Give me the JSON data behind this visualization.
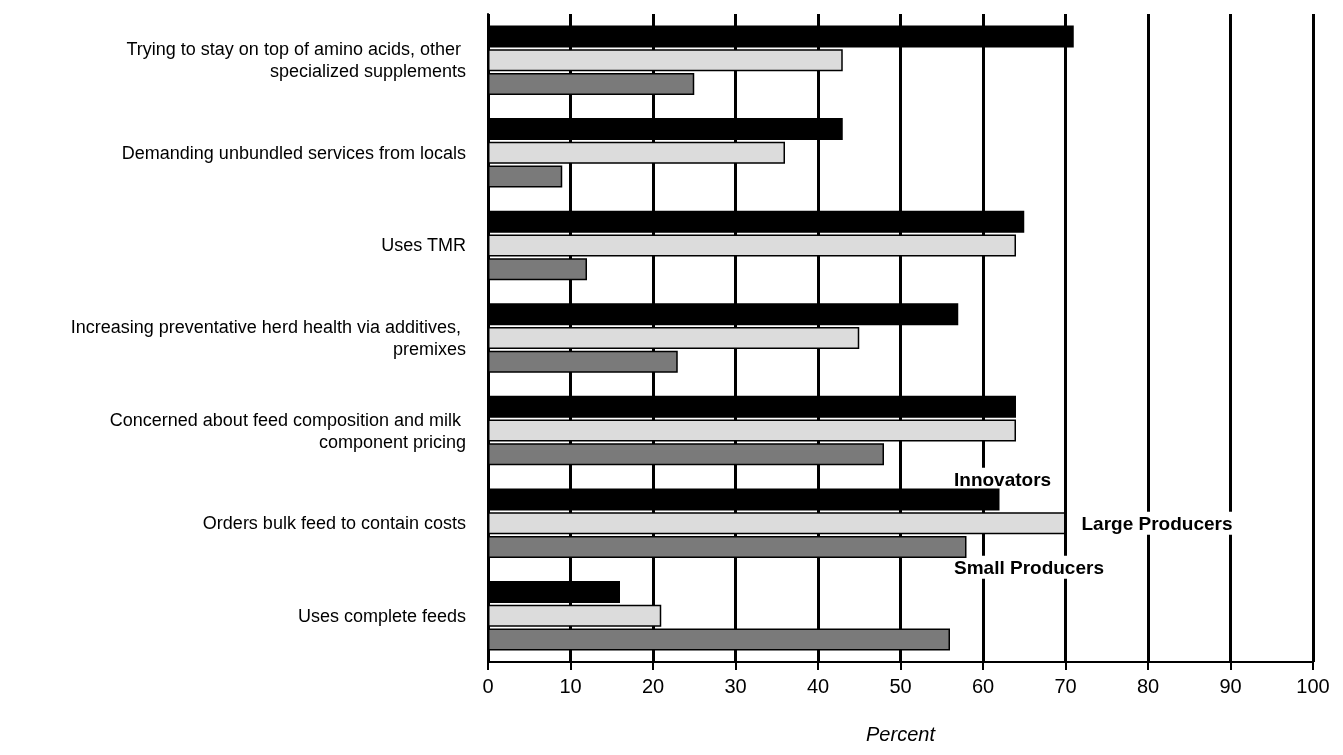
{
  "chart_data": {
    "type": "bar",
    "orientation": "horizontal",
    "xlabel": "Percent",
    "categories": [
      "Trying to stay on top of amino acids, other specialized supplements",
      "Demanding unbundled services from locals",
      "Uses TMR",
      "Increasing preventative herd health via additives, premixes",
      "Concerned about feed composition and milk component pricing",
      "Orders bulk feed to contain costs",
      "Uses complete feeds"
    ],
    "series": [
      {
        "name": "Innovators",
        "color": "#000000",
        "values": [
          71,
          43,
          65,
          57,
          64,
          62,
          16
        ]
      },
      {
        "name": "Large Producers",
        "color": "#dcdcdc",
        "values": [
          43,
          36,
          64,
          45,
          64,
          70,
          21
        ]
      },
      {
        "name": "Small Producers",
        "color": "#7a7a7a",
        "values": [
          25,
          9,
          12,
          23,
          48,
          58,
          56
        ]
      }
    ],
    "xlim": [
      0,
      100
    ],
    "xticks": [
      0,
      10,
      20,
      30,
      40,
      50,
      60,
      70,
      80,
      90,
      100
    ],
    "grid": "x"
  }
}
